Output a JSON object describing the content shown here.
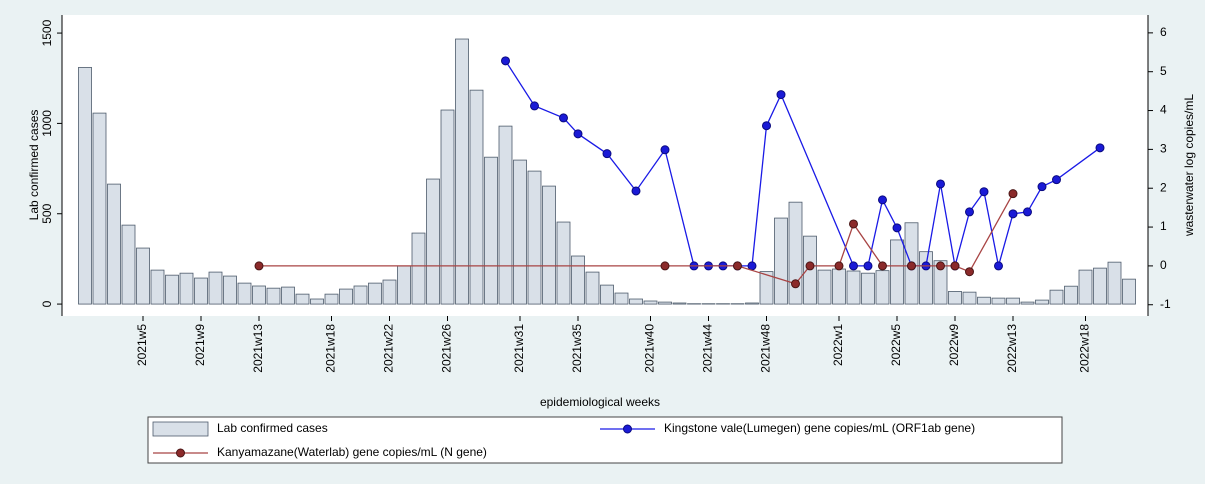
{
  "chart_data": {
    "type": "bar",
    "x_label": "epidemiological weeks",
    "y_label": "Lab confirmed cases",
    "y2_label": "wasterwater log copies/mL",
    "categories": [
      null,
      null,
      null,
      null,
      "2021w5",
      null,
      null,
      null,
      "2021w9",
      null,
      null,
      null,
      "2021w13",
      null,
      null,
      null,
      null,
      "2021w18",
      null,
      null,
      null,
      "2021w22",
      null,
      null,
      null,
      "2021w26",
      null,
      null,
      null,
      null,
      "2021w31",
      null,
      null,
      null,
      "2021w35",
      null,
      null,
      null,
      null,
      "2021w40",
      null,
      null,
      null,
      "2021w44",
      null,
      null,
      null,
      "2021w48",
      null,
      null,
      null,
      null,
      "2022w1",
      null,
      null,
      null,
      "2022w5",
      null,
      null,
      null,
      "2022w9",
      null,
      null,
      null,
      "2022w13",
      null,
      null,
      null,
      null,
      "2022w18",
      null,
      null,
      null
    ],
    "ylim": [
      -66,
      1600
    ],
    "yticks": [
      0,
      500,
      1000,
      1500
    ],
    "y2lim": [
      -1.29,
      6.46
    ],
    "y2ticks": [
      -1,
      0,
      1,
      2,
      3,
      4,
      5,
      6
    ],
    "grid": false,
    "connect_gaps": true,
    "series": [
      {
        "name": "Lab confirmed cases",
        "type": "bar",
        "color": "#d9e0e8",
        "values": [
          1310,
          1057,
          664,
          437,
          310,
          188,
          160,
          171,
          144,
          177,
          155,
          116,
          100,
          88,
          94,
          55,
          28,
          55,
          83,
          100,
          116,
          133,
          210,
          393,
          692,
          1074,
          1467,
          1184,
          813,
          985,
          797,
          736,
          653,
          454,
          266,
          177,
          105,
          61,
          28,
          17,
          11,
          6,
          2,
          2,
          2,
          2,
          6,
          180,
          476,
          564,
          376,
          188,
          194,
          183,
          171,
          185,
          355,
          450,
          290,
          240,
          70,
          66,
          38,
          33,
          33,
          11,
          22,
          77,
          99,
          188,
          199,
          232,
          138
        ]
      },
      {
        "name": "Kingstone vale(Lumegen) gene copies/mL (ORF1ab gene)",
        "type": "line",
        "axis": "y2",
        "color": "#1a1ae6",
        "values": [
          null,
          null,
          null,
          null,
          null,
          null,
          null,
          null,
          null,
          null,
          null,
          null,
          null,
          null,
          null,
          null,
          null,
          null,
          null,
          null,
          null,
          null,
          null,
          null,
          null,
          null,
          null,
          null,
          null,
          5.28,
          null,
          4.12,
          null,
          3.81,
          3.4,
          null,
          2.89,
          null,
          1.93,
          null,
          2.99,
          null,
          0,
          0,
          0,
          0,
          0,
          3.61,
          4.41,
          null,
          null,
          null,
          null,
          0,
          0,
          1.7,
          0.98,
          0,
          0,
          2.11,
          0,
          1.39,
          1.91,
          0,
          1.34,
          1.39,
          2.04,
          2.22,
          null,
          null,
          3.04,
          null,
          null
        ]
      },
      {
        "name": "Kanyamazane(Waterlab) gene copies/mL (N gene)",
        "type": "line",
        "axis": "y2",
        "color": "#a84444",
        "values": [
          null,
          null,
          null,
          null,
          null,
          null,
          null,
          null,
          null,
          null,
          null,
          null,
          0,
          null,
          null,
          null,
          null,
          null,
          null,
          null,
          null,
          null,
          null,
          null,
          null,
          null,
          null,
          null,
          null,
          null,
          null,
          null,
          null,
          null,
          null,
          null,
          null,
          null,
          null,
          null,
          0,
          null,
          null,
          null,
          null,
          0,
          null,
          null,
          null,
          -0.46,
          0,
          null,
          0,
          1.08,
          null,
          0,
          null,
          0,
          null,
          0,
          0,
          -0.15,
          null,
          null,
          1.86,
          null,
          null,
          null,
          null,
          null,
          null,
          null,
          null
        ]
      }
    ]
  }
}
